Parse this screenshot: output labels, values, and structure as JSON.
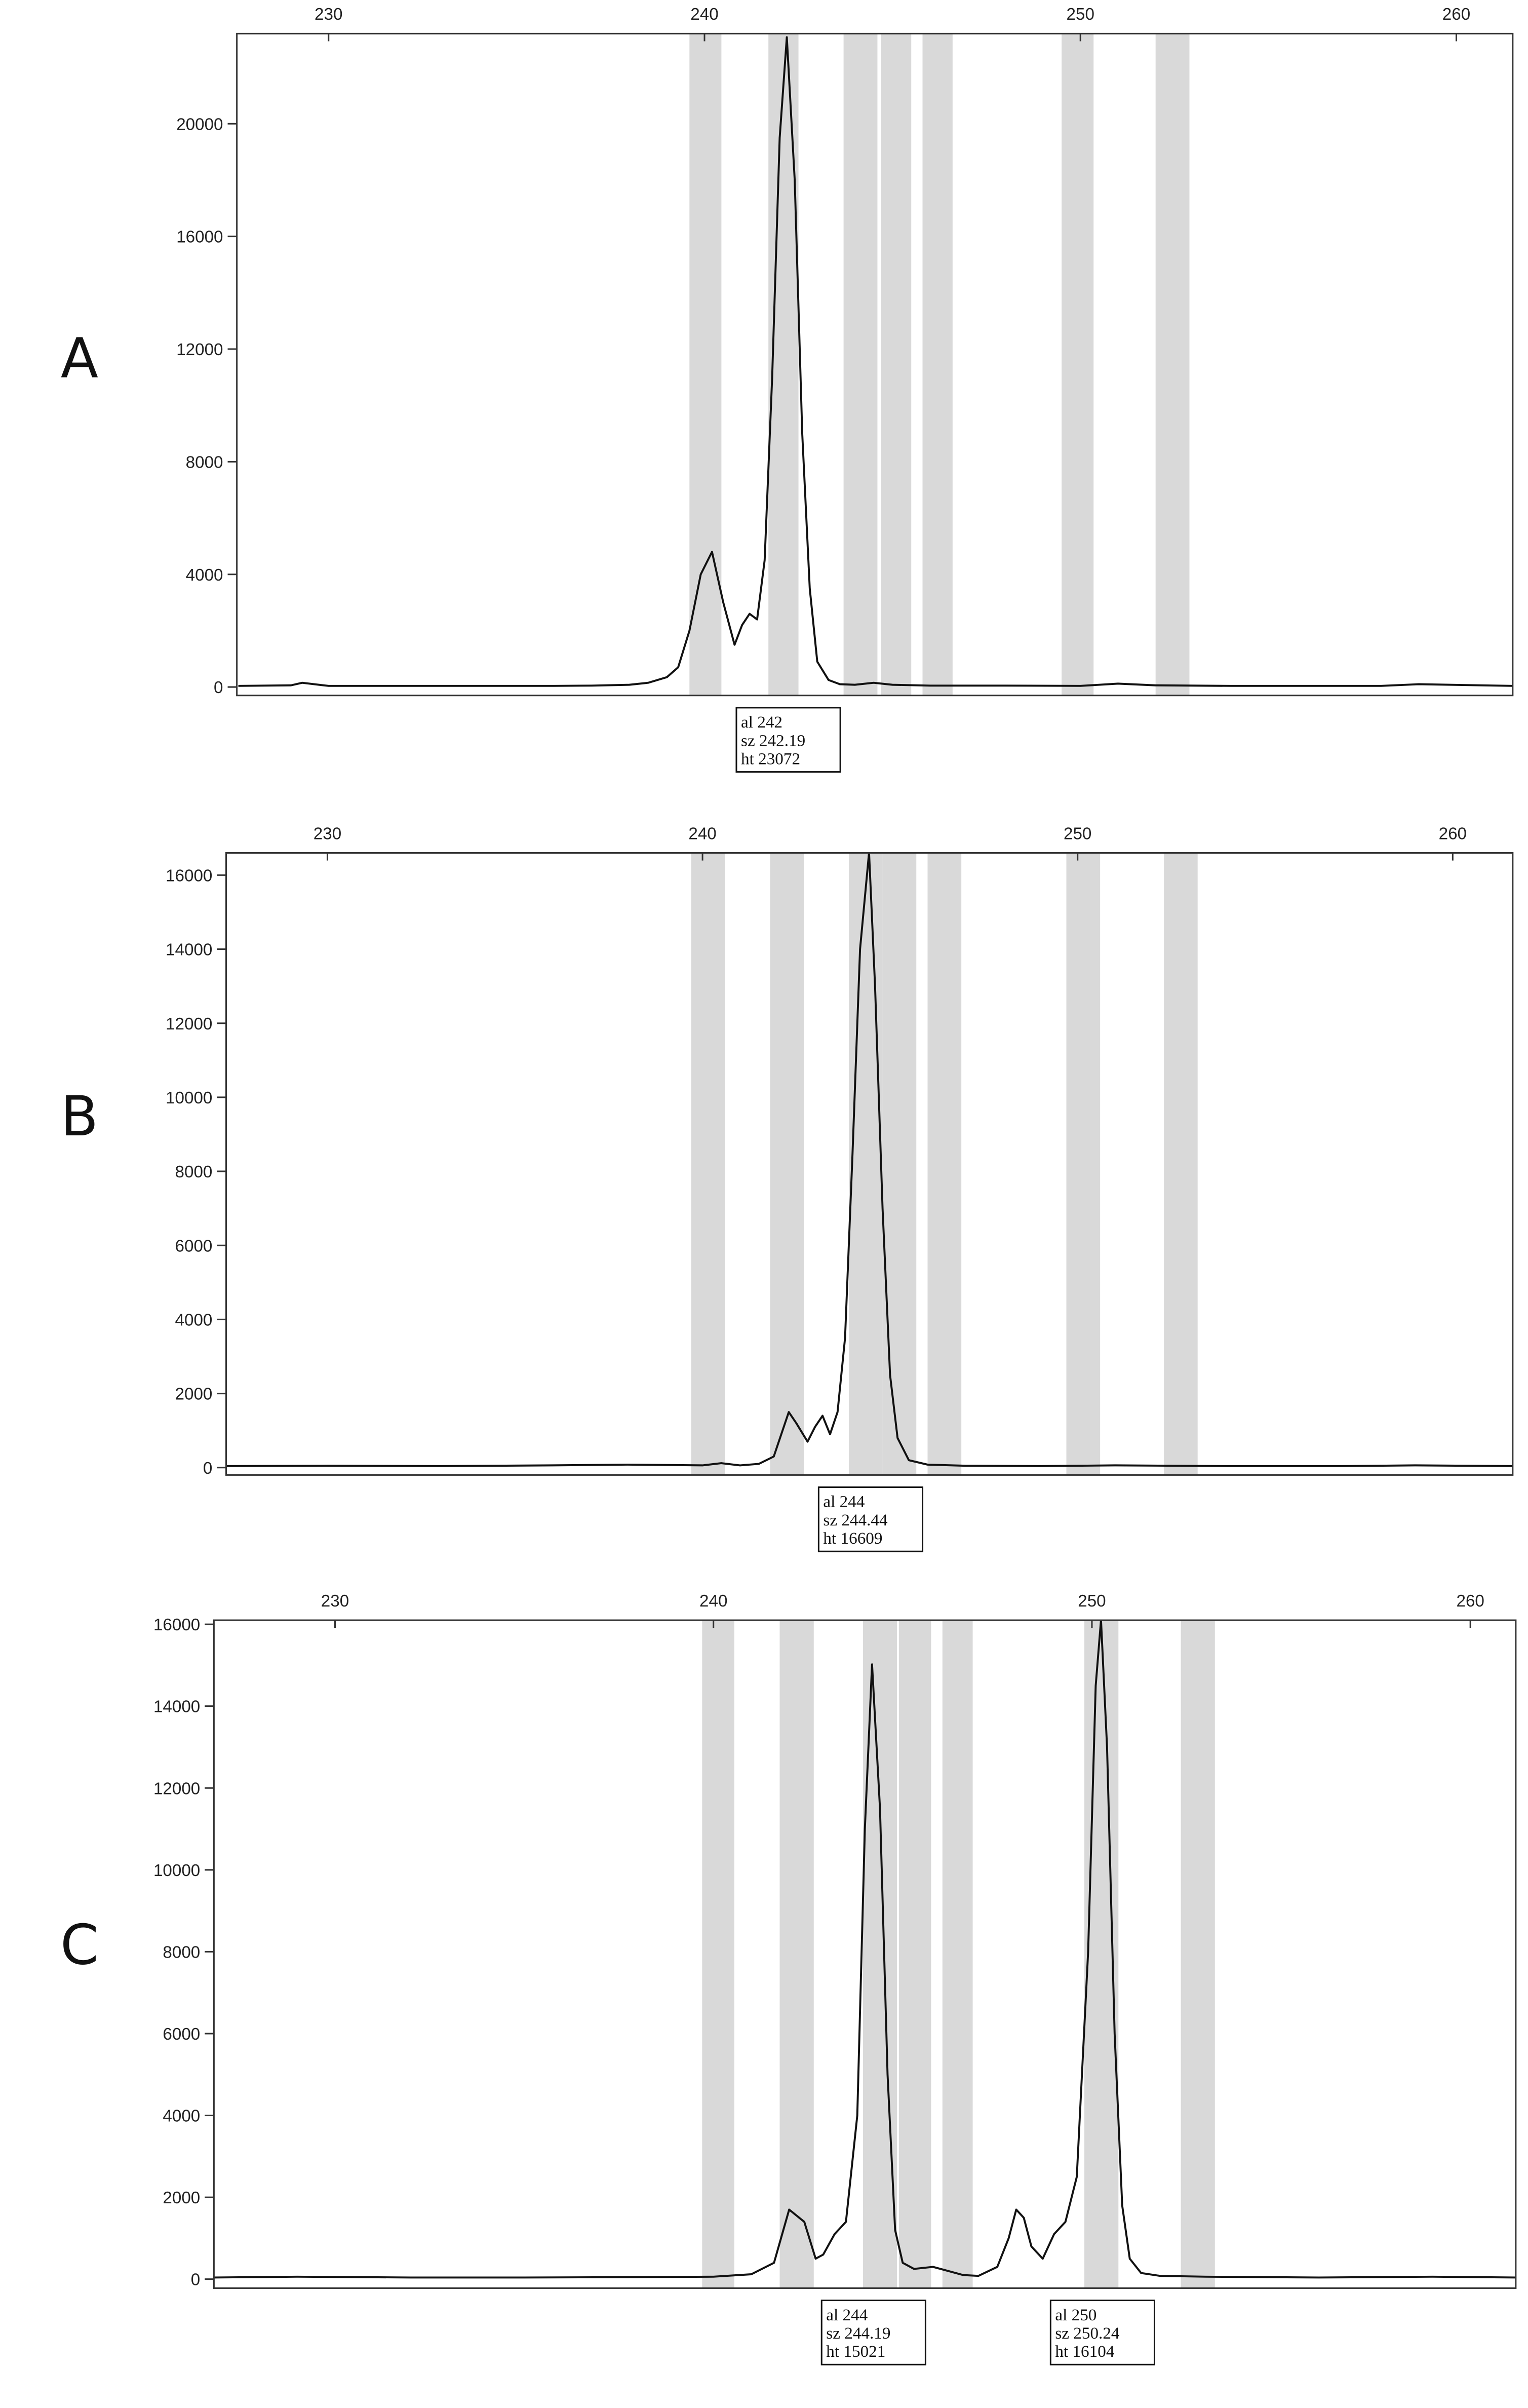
{
  "chart_data": [
    {
      "type": "line",
      "label": "A",
      "xlim": [
        227.56,
        261.5
      ],
      "ylim": [
        -300,
        23200
      ],
      "xticks": [
        230,
        240,
        250,
        260
      ],
      "yticks": [
        0,
        4000,
        8000,
        12000,
        16000,
        20000
      ],
      "bin_color": "#d9d9d9",
      "bins": [
        [
          239.6,
          240.45
        ],
        [
          241.7,
          242.5
        ],
        [
          243.7,
          244.6
        ],
        [
          244.7,
          245.5
        ],
        [
          245.8,
          246.6
        ],
        [
          249.5,
          250.35
        ],
        [
          252.0,
          252.9
        ]
      ],
      "series": [
        {
          "color": "#111111",
          "x": [
            227.6,
            229,
            229.3,
            230,
            232,
            234,
            236,
            237,
            238,
            238.5,
            239,
            239.3,
            239.6,
            239.9,
            240.2,
            240.5,
            240.8,
            241.0,
            241.2,
            241.4,
            241.6,
            241.8,
            242.0,
            242.19,
            242.4,
            242.6,
            242.8,
            243.0,
            243.3,
            243.6,
            244,
            244.5,
            245,
            246,
            248,
            250,
            251,
            252,
            254,
            256,
            258,
            259,
            261.5
          ],
          "values": [
            40,
            60,
            150,
            40,
            40,
            40,
            40,
            50,
            80,
            150,
            350,
            700,
            2000,
            4000,
            4800,
            3000,
            1500,
            2200,
            2600,
            2400,
            4500,
            11000,
            19500,
            23072,
            18000,
            9000,
            3500,
            900,
            250,
            100,
            80,
            150,
            80,
            50,
            50,
            40,
            120,
            60,
            40,
            40,
            40,
            100,
            40
          ]
        }
      ],
      "annotations": [
        {
          "x": 242.19,
          "lines": [
            "al 242",
            "sz 242.19",
            "ht 23072"
          ]
        }
      ]
    },
    {
      "type": "line",
      "label": "B",
      "xlim": [
        227.3,
        261.6
      ],
      "ylim": [
        -200,
        16600
      ],
      "xticks": [
        230,
        240,
        250,
        260
      ],
      "yticks": [
        0,
        2000,
        4000,
        6000,
        8000,
        10000,
        12000,
        14000,
        16000
      ],
      "bin_color": "#d9d9d9",
      "bins": [
        [
          239.7,
          240.6
        ],
        [
          241.8,
          242.7
        ],
        [
          243.9,
          244.8
        ],
        [
          244.8,
          245.7
        ],
        [
          246.0,
          246.9
        ],
        [
          249.7,
          250.6
        ],
        [
          252.3,
          253.2
        ]
      ],
      "series": [
        {
          "color": "#111111",
          "x": [
            227.3,
            230,
            233,
            236,
            238,
            240,
            240.5,
            241,
            241.5,
            241.9,
            242.1,
            242.3,
            242.5,
            242.8,
            243.0,
            243.2,
            243.4,
            243.6,
            243.8,
            244.0,
            244.2,
            244.44,
            244.6,
            244.8,
            245.0,
            245.2,
            245.5,
            246,
            247,
            249,
            251,
            254,
            257,
            259,
            261.6
          ],
          "values": [
            40,
            50,
            40,
            60,
            80,
            60,
            120,
            60,
            100,
            300,
            900,
            1500,
            1200,
            700,
            1100,
            1400,
            900,
            1500,
            3500,
            8500,
            14000,
            16609,
            13000,
            7000,
            2500,
            800,
            200,
            80,
            50,
            40,
            60,
            40,
            40,
            60,
            40
          ]
        }
      ],
      "annotations": [
        {
          "x": 244.44,
          "lines": [
            "al 244",
            "sz 244.44",
            "ht 16609"
          ]
        }
      ]
    },
    {
      "type": "line",
      "label": "C",
      "xlim": [
        226.8,
        261.2
      ],
      "ylim": [
        -220,
        16100
      ],
      "xticks": [
        230,
        240,
        250,
        260
      ],
      "yticks": [
        0,
        2000,
        4000,
        6000,
        8000,
        10000,
        12000,
        14000,
        16000
      ],
      "bin_color": "#d9d9d9",
      "bins": [
        [
          239.7,
          240.55
        ],
        [
          241.75,
          242.65
        ],
        [
          243.95,
          244.85
        ],
        [
          244.9,
          245.75
        ],
        [
          246.05,
          246.85
        ],
        [
          249.8,
          250.7
        ],
        [
          252.35,
          253.25
        ]
      ],
      "series": [
        {
          "color": "#111111",
          "x": [
            226.8,
            229,
            232,
            235,
            238,
            240,
            241,
            241.6,
            242.0,
            242.4,
            242.7,
            242.9,
            243.2,
            243.5,
            243.8,
            244.0,
            244.19,
            244.4,
            244.6,
            244.8,
            245.0,
            245.3,
            245.8,
            246.2,
            246.6,
            247.0,
            247.5,
            247.8,
            248.0,
            248.2,
            248.4,
            248.7,
            249.0,
            249.3,
            249.6,
            249.9,
            250.1,
            250.24,
            250.4,
            250.6,
            250.8,
            251.0,
            251.3,
            251.8,
            253,
            256,
            259,
            261.2
          ],
          "values": [
            40,
            60,
            40,
            40,
            50,
            60,
            120,
            400,
            1700,
            1400,
            500,
            600,
            1100,
            1400,
            4000,
            11000,
            15021,
            11500,
            5000,
            1200,
            400,
            250,
            300,
            200,
            100,
            80,
            300,
            1000,
            1700,
            1500,
            800,
            500,
            1100,
            1400,
            2500,
            8000,
            14500,
            16104,
            13000,
            6000,
            1800,
            500,
            150,
            80,
            60,
            40,
            60,
            40
          ]
        }
      ],
      "annotations": [
        {
          "x": 244.19,
          "lines": [
            "al 244",
            "sz 244.19",
            "ht 15021"
          ]
        },
        {
          "x": 250.24,
          "lines": [
            "al 250",
            "sz 250.24",
            "ht 16104"
          ]
        }
      ]
    }
  ]
}
